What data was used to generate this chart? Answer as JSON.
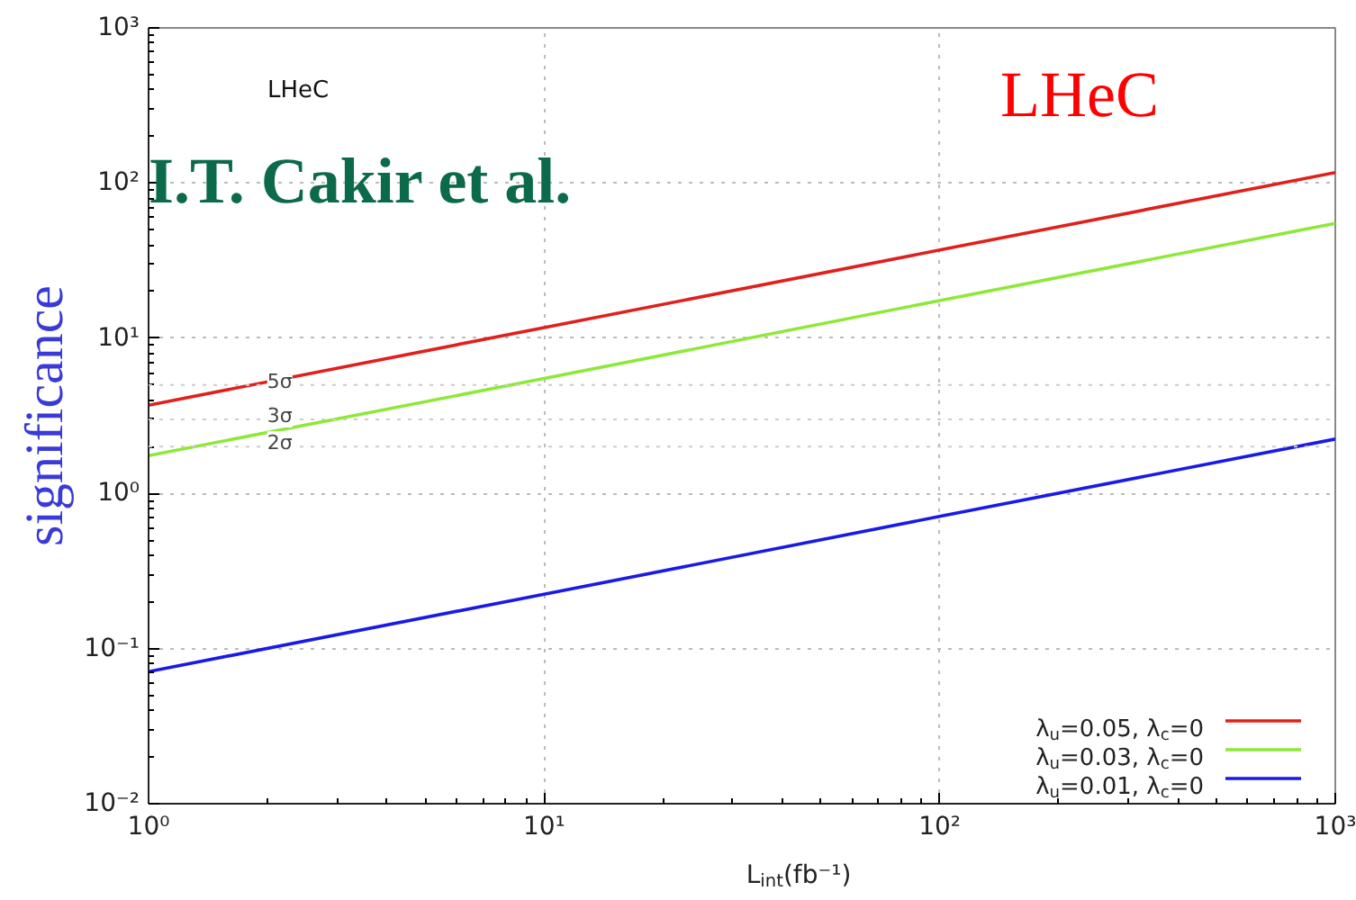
{
  "chart_data": {
    "type": "line",
    "xlabel": "L$_{int}$(fb⁻¹)",
    "ylabel": "significance",
    "annotations": [
      "LHeC",
      "LHeC",
      "I.T. Cakir et al."
    ],
    "x": [
      1,
      10,
      100,
      1000
    ],
    "series": [
      {
        "name": "λ$_{u}$=0.05, λ$_{c}$=0",
        "color": "#e0201c",
        "values": [
          3.7,
          11.7,
          37,
          117
        ]
      },
      {
        "name": "λ$_{u}$=0.03, λ$_{c}$=0",
        "color": "#8ee83a",
        "values": [
          1.75,
          5.5,
          17.5,
          55
        ]
      },
      {
        "name": "λ$_{u}$=0.01, λ$_{c}$=0",
        "color": "#1a1ae6",
        "values": [
          0.071,
          0.224,
          0.71,
          2.24
        ]
      }
    ],
    "ref_lines": [
      {
        "axis": "y",
        "value": 5,
        "label": "5σ",
        "line_style": "dotted",
        "color": "#cccccc"
      },
      {
        "axis": "y",
        "value": 3,
        "label": "3σ",
        "line_style": "dotted",
        "color": "#cccccc"
      },
      {
        "axis": "y",
        "value": 2,
        "label": "2σ",
        "line_style": "dotted",
        "color": "#cccccc"
      }
    ],
    "log": "xy",
    "xlim": [
      1,
      1000
    ],
    "ylim": [
      0.01,
      1000
    ],
    "xticks": [
      {
        "value": 1,
        "label": "10⁰"
      },
      {
        "value": 10,
        "label": "10¹"
      },
      {
        "value": 100,
        "label": "10²"
      },
      {
        "value": 1000,
        "label": "10³"
      }
    ],
    "yticks": [
      {
        "value": 0.01,
        "label": "10⁻²"
      },
      {
        "value": 0.1,
        "label": "10⁻¹"
      },
      {
        "value": 1,
        "label": "10⁰"
      },
      {
        "value": 10,
        "label": "10¹"
      },
      {
        "value": 100,
        "label": "10²"
      },
      {
        "value": 1000,
        "label": "10³"
      }
    ],
    "grid": true,
    "legend": "bottom right",
    "marker": "none",
    "line_style": "solid"
  }
}
